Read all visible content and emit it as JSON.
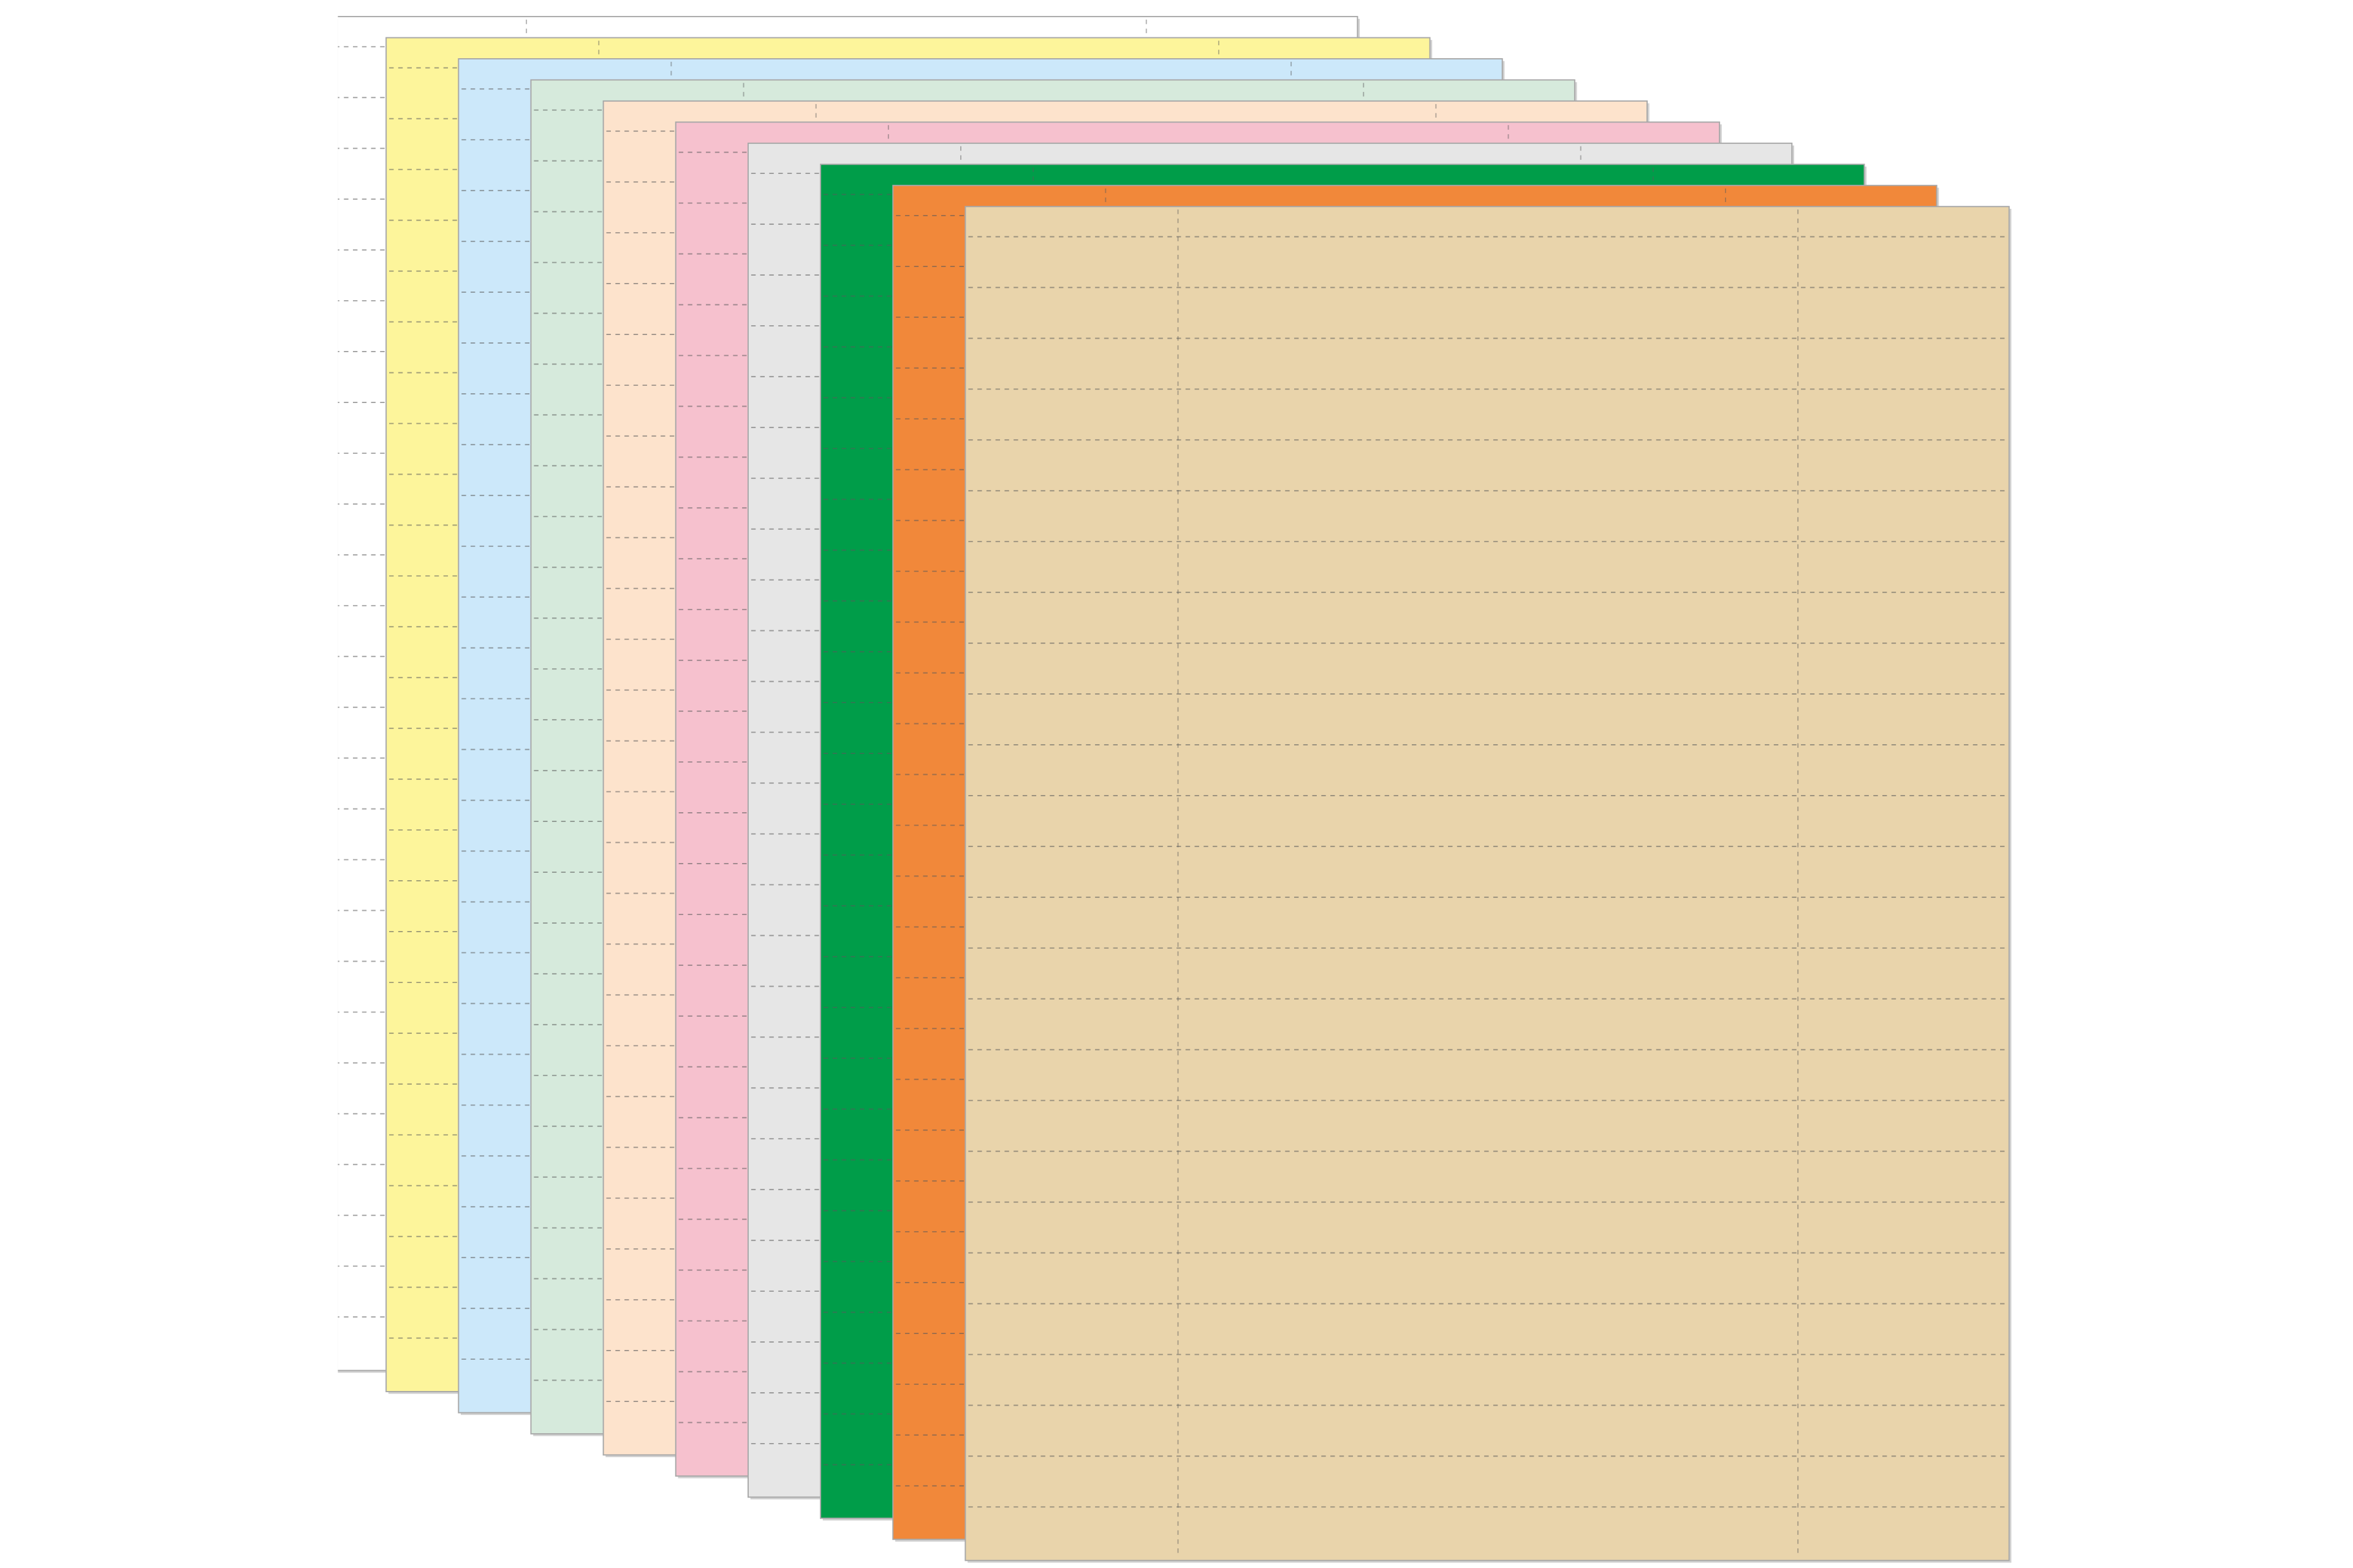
{
  "sheets": [
    {
      "color": "#ffffff"
    },
    {
      "color": "#fdf59b"
    },
    {
      "color": "#cce8fa"
    },
    {
      "color": "#d6eadc"
    },
    {
      "color": "#fde3cc"
    },
    {
      "color": "#f6c1ce"
    },
    {
      "color": "#e6e6e6"
    },
    {
      "color": "#009d49"
    },
    {
      "color": "#f1883a"
    },
    {
      "color": "#e9d4ab"
    }
  ]
}
